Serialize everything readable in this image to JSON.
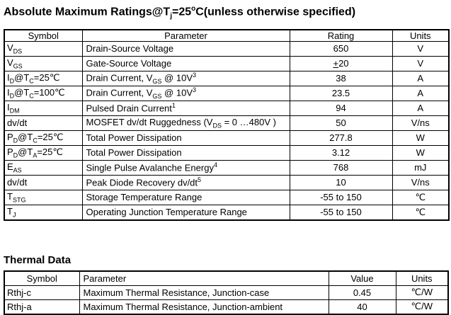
{
  "colors": {
    "text": "#000000",
    "border": "#000000",
    "background": "#ffffff"
  },
  "abs_max": {
    "title_segments": [
      {
        "t": "Absolute Maximum Ratings@T"
      },
      {
        "t": "j",
        "m": "sub"
      },
      {
        "t": "=25"
      },
      {
        "t": "o",
        "m": "sup"
      },
      {
        "t": "C(unless otherwise specified)"
      }
    ],
    "headers": [
      "Symbol",
      "Parameter",
      "Rating",
      "Units"
    ],
    "rows": [
      {
        "symbol": [
          {
            "t": "V"
          },
          {
            "t": "DS",
            "m": "sub"
          }
        ],
        "parameter": [
          {
            "t": "Drain-Source Voltage"
          }
        ],
        "rating": [
          {
            "t": "650"
          }
        ],
        "units": [
          {
            "t": "V"
          }
        ]
      },
      {
        "symbol": [
          {
            "t": "V"
          },
          {
            "t": "GS",
            "m": "sub"
          }
        ],
        "parameter": [
          {
            "t": "Gate-Source Voltage"
          }
        ],
        "rating": [
          {
            "t": "+",
            "m": "u"
          },
          {
            "t": "20"
          }
        ],
        "units": [
          {
            "t": "V"
          }
        ]
      },
      {
        "symbol": [
          {
            "t": "I"
          },
          {
            "t": "D",
            "m": "sub"
          },
          {
            "t": "@T"
          },
          {
            "t": "C",
            "m": "sub"
          },
          {
            "t": "=25℃"
          }
        ],
        "parameter": [
          {
            "t": "Drain Current, V"
          },
          {
            "t": "GS",
            "m": "sub"
          },
          {
            "t": " @ 10V"
          },
          {
            "t": "3",
            "m": "sup"
          }
        ],
        "rating": [
          {
            "t": "38"
          }
        ],
        "units": [
          {
            "t": "A"
          }
        ]
      },
      {
        "symbol": [
          {
            "t": "I"
          },
          {
            "t": "D",
            "m": "sub"
          },
          {
            "t": "@T"
          },
          {
            "t": "C",
            "m": "sub"
          },
          {
            "t": "=100℃"
          }
        ],
        "parameter": [
          {
            "t": "Drain Current, V"
          },
          {
            "t": "GS",
            "m": "sub"
          },
          {
            "t": " @ 10V"
          },
          {
            "t": "3",
            "m": "sup"
          }
        ],
        "rating": [
          {
            "t": "23.5"
          }
        ],
        "units": [
          {
            "t": "A"
          }
        ]
      },
      {
        "symbol": [
          {
            "t": "I"
          },
          {
            "t": "DM",
            "m": "sub"
          }
        ],
        "parameter": [
          {
            "t": "Pulsed Drain Current"
          },
          {
            "t": "1",
            "m": "sup"
          }
        ],
        "rating": [
          {
            "t": "94"
          }
        ],
        "units": [
          {
            "t": "A"
          }
        ]
      },
      {
        "symbol": [
          {
            "t": "dv/dt"
          }
        ],
        "parameter": [
          {
            "t": "MOSFET dv/dt Ruggedness (V"
          },
          {
            "t": "DS",
            "m": "sub"
          },
          {
            "t": " = 0 …480V )"
          }
        ],
        "rating": [
          {
            "t": "50"
          }
        ],
        "units": [
          {
            "t": "V/ns"
          }
        ]
      },
      {
        "symbol": [
          {
            "t": "P"
          },
          {
            "t": "D",
            "m": "sub"
          },
          {
            "t": "@T"
          },
          {
            "t": "C",
            "m": "sub"
          },
          {
            "t": "=25℃"
          }
        ],
        "parameter": [
          {
            "t": "Total Power Dissipation"
          }
        ],
        "rating": [
          {
            "t": "277.8"
          }
        ],
        "units": [
          {
            "t": "W"
          }
        ]
      },
      {
        "symbol": [
          {
            "t": "P"
          },
          {
            "t": "D",
            "m": "sub"
          },
          {
            "t": "@T"
          },
          {
            "t": "A",
            "m": "sub"
          },
          {
            "t": "=25℃"
          }
        ],
        "parameter": [
          {
            "t": "Total Power Dissipation"
          }
        ],
        "rating": [
          {
            "t": "3.12"
          }
        ],
        "units": [
          {
            "t": "W"
          }
        ]
      },
      {
        "symbol": [
          {
            "t": "E"
          },
          {
            "t": "AS",
            "m": "sub"
          }
        ],
        "parameter": [
          {
            "t": "Single Pulse Avalanche Energy"
          },
          {
            "t": "4",
            "m": "sup"
          }
        ],
        "rating": [
          {
            "t": "768"
          }
        ],
        "units": [
          {
            "t": "mJ"
          }
        ]
      },
      {
        "symbol": [
          {
            "t": "dv/dt"
          }
        ],
        "parameter": [
          {
            "t": "Peak Diode Recovery dv/dt"
          },
          {
            "t": "5",
            "m": "sup"
          }
        ],
        "rating": [
          {
            "t": "10"
          }
        ],
        "units": [
          {
            "t": "V/ns"
          }
        ]
      },
      {
        "symbol": [
          {
            "t": "T"
          },
          {
            "t": "STG",
            "m": "sub"
          }
        ],
        "parameter": [
          {
            "t": "Storage Temperature Range"
          }
        ],
        "rating": [
          {
            "t": "-55 to 150"
          }
        ],
        "units": [
          {
            "t": "℃"
          }
        ]
      },
      {
        "symbol": [
          {
            "t": "T"
          },
          {
            "t": "J",
            "m": "sub"
          }
        ],
        "parameter": [
          {
            "t": "Operating Junction Temperature Range"
          }
        ],
        "rating": [
          {
            "t": "-55 to 150"
          }
        ],
        "units": [
          {
            "t": "℃"
          }
        ]
      }
    ]
  },
  "thermal": {
    "title": "Thermal Data",
    "headers": [
      "Symbol",
      "Parameter",
      "Value",
      "Units"
    ],
    "rows": [
      {
        "symbol": [
          {
            "t": "Rthj-c"
          }
        ],
        "parameter": [
          {
            "t": "Maximum Thermal Resistance, Junction-case"
          }
        ],
        "value": [
          {
            "t": "0.45"
          }
        ],
        "units": [
          {
            "t": "℃/W"
          }
        ]
      },
      {
        "symbol": [
          {
            "t": "Rthj-a"
          }
        ],
        "parameter": [
          {
            "t": "Maximum Thermal Resistance, Junction-ambient"
          }
        ],
        "value": [
          {
            "t": "40"
          }
        ],
        "units": [
          {
            "t": "℃/W"
          }
        ]
      }
    ]
  }
}
